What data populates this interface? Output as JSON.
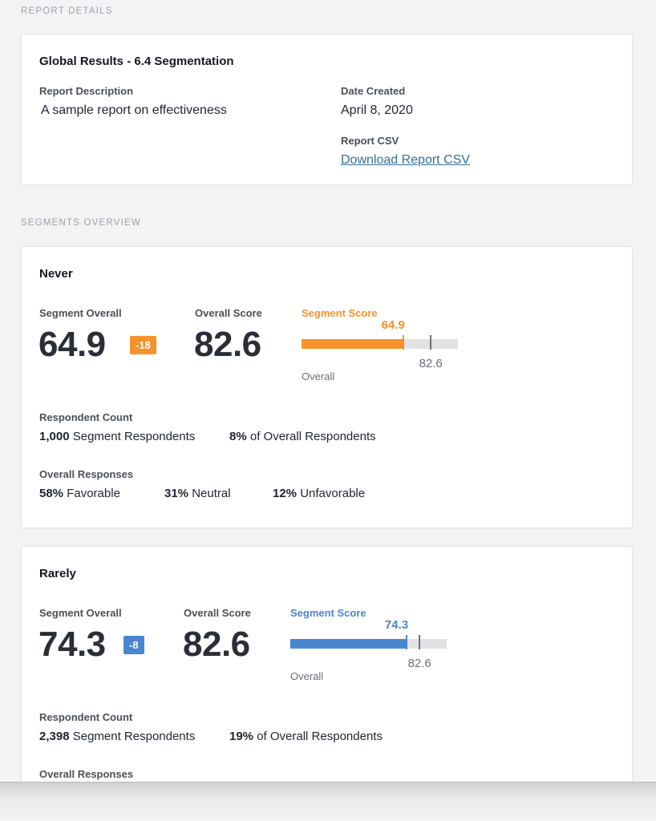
{
  "report_details": {
    "section_label": "REPORT DETAILS",
    "title": "Global Results - 6.4 Segmentation",
    "description_label": "Report Description",
    "description_value": "A sample report on effectiveness",
    "date_label": "Date Created",
    "date_value": "April 8, 2020",
    "csv_label": "Report CSV",
    "csv_link": "Download Report CSV"
  },
  "segments_overview": {
    "section_label": "SEGMENTS OVERVIEW",
    "segments": [
      {
        "name": "Never",
        "color": "#f7922c",
        "segment_overall_label": "Segment Overall",
        "segment_overall": "64.9",
        "delta": "-18",
        "overall_score_label": "Overall Score",
        "overall_score": "82.6",
        "segment_score_label": "Segment Score",
        "segment_score_value": "64.9",
        "segment_score_num": 64.9,
        "overall_value": "82.6",
        "overall_num": 82.6,
        "overall_text": "Overall",
        "respondent_count_label": "Respondent Count",
        "segment_respondents_num": "1,000",
        "segment_respondents_text": "Segment Respondents",
        "overall_pct": "8%",
        "overall_respondents_text": "of Overall Respondents",
        "overall_responses_label": "Overall Responses",
        "favorable_pct": "58%",
        "favorable_text": "Favorable",
        "neutral_pct": "31%",
        "neutral_text": "Neutral",
        "unfavorable_pct": "12%",
        "unfavorable_text": "Unfavorable"
      },
      {
        "name": "Rarely",
        "color": "#4a86cf",
        "segment_overall_label": "Segment Overall",
        "segment_overall": "74.3",
        "delta": "-8",
        "overall_score_label": "Overall Score",
        "overall_score": "82.6",
        "segment_score_label": "Segment Score",
        "segment_score_value": "74.3",
        "segment_score_num": 74.3,
        "overall_value": "82.6",
        "overall_num": 82.6,
        "overall_text": "Overall",
        "respondent_count_label": "Respondent Count",
        "segment_respondents_num": "2,398",
        "segment_respondents_text": "Segment Respondents",
        "overall_pct": "19%",
        "overall_respondents_text": "of Overall Respondents",
        "overall_responses_label": "Overall Responses"
      }
    ]
  }
}
